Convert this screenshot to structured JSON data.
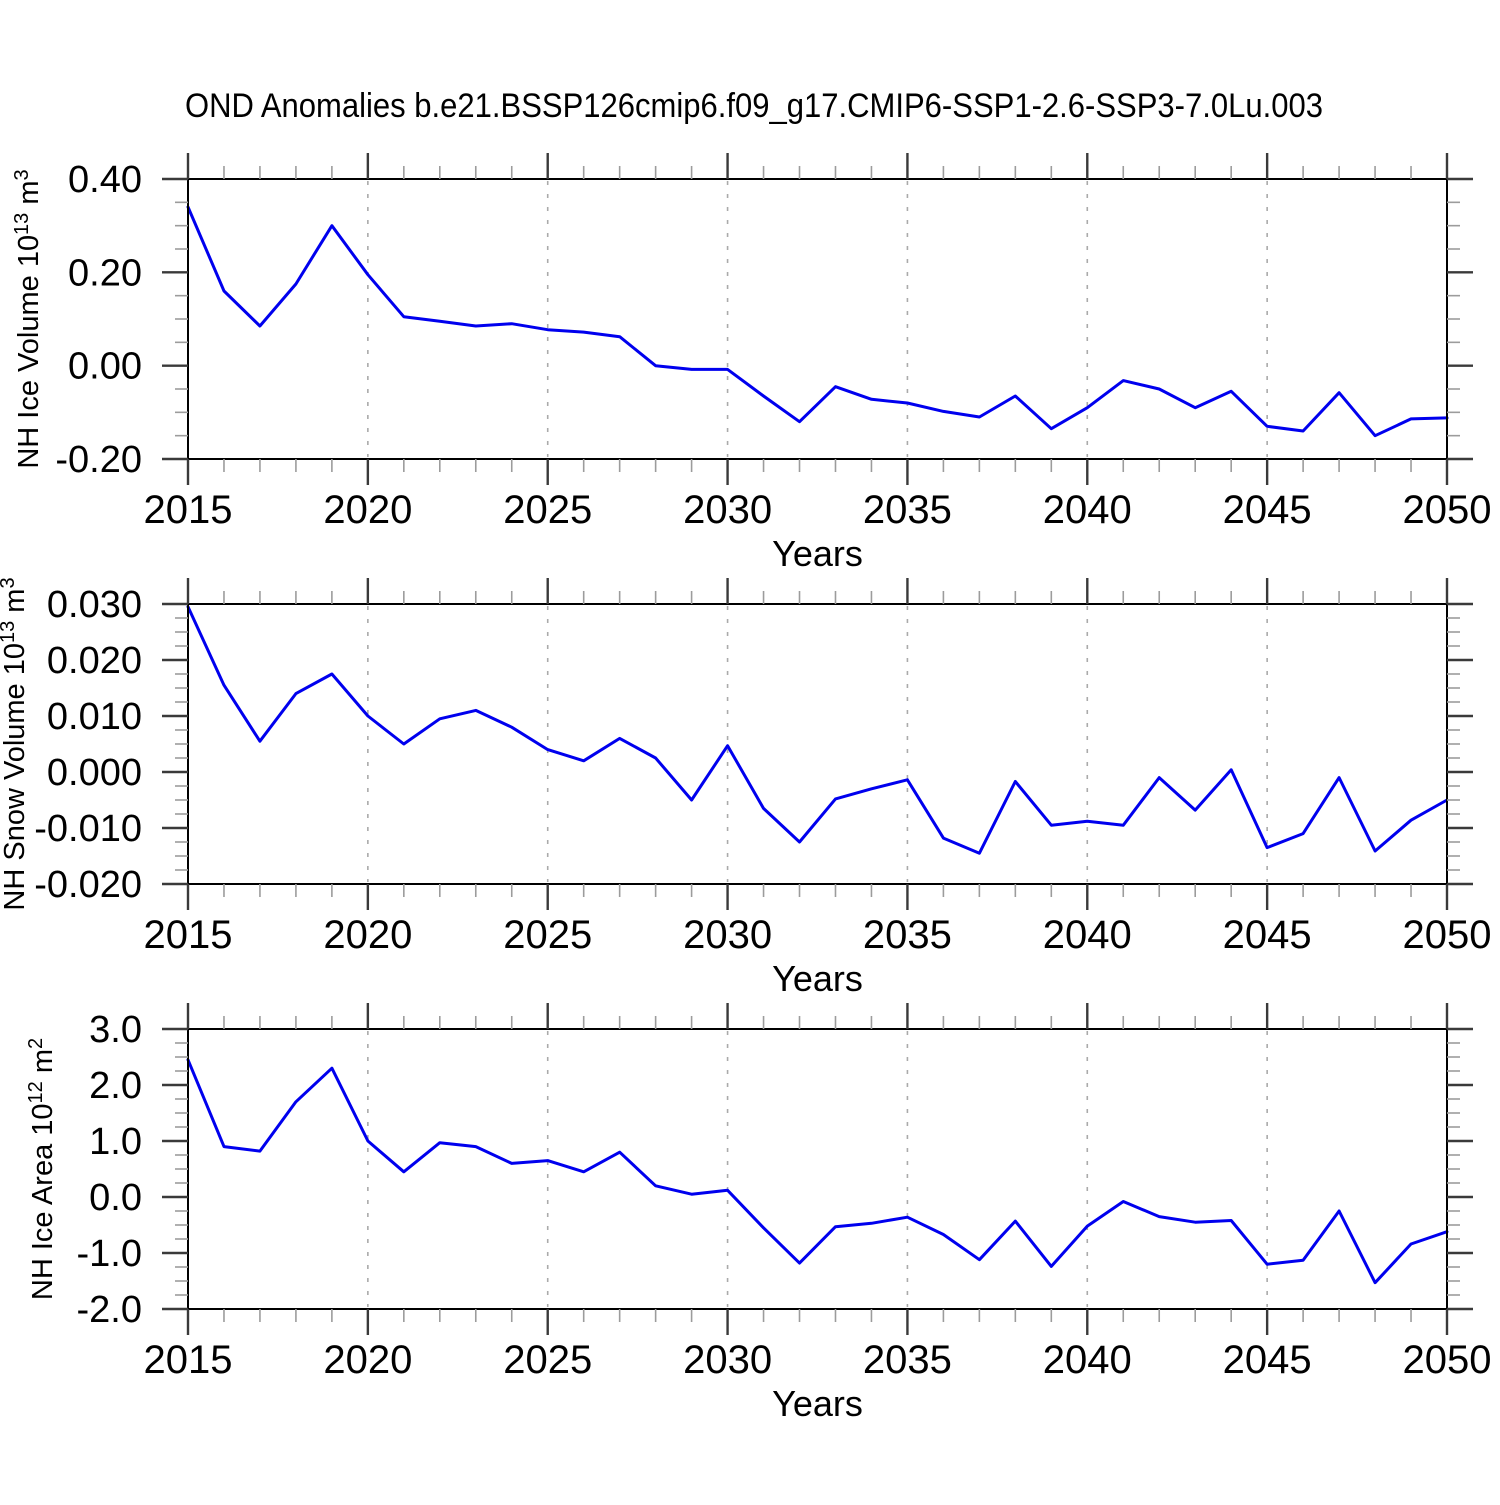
{
  "title": "OND Anomalies b.e21.BSSP126cmip6.f09_g17.CMIP6-SSP1-2.6-SSP3-7.0Lu.003",
  "colors": {
    "line": "#0000ee",
    "axis": "#000000",
    "major_tick": "#3a3a3a",
    "minor_tick": "#9c9c9c",
    "grid": "#aaaaaa",
    "text": "#000000"
  },
  "x_axis": {
    "label": "Years",
    "start": 2015,
    "end": 2050,
    "major_step": 5,
    "minor_step": 1,
    "tick_labels": [
      "2015",
      "2020",
      "2025",
      "2030",
      "2035",
      "2040",
      "2045",
      "2050"
    ],
    "grid_years": [
      2020,
      2025,
      2030,
      2035,
      2040,
      2045
    ],
    "years": [
      2015,
      2016,
      2017,
      2018,
      2019,
      2020,
      2021,
      2022,
      2023,
      2024,
      2025,
      2026,
      2027,
      2028,
      2029,
      2030,
      2031,
      2032,
      2033,
      2034,
      2035,
      2036,
      2037,
      2038,
      2039,
      2040,
      2041,
      2042,
      2043,
      2044,
      2045,
      2046,
      2047,
      2048,
      2049,
      2050
    ]
  },
  "chart_data": [
    {
      "id": "ice-volume",
      "type": "line",
      "ylabel": "NH Ice Volume 10^13 m^3",
      "ylabel_parts": [
        {
          "t": "NH Ice Volume 10",
          "sup": false
        },
        {
          "t": "13",
          "sup": true
        },
        {
          "t": " m",
          "sup": false
        },
        {
          "t": "3",
          "sup": true
        }
      ],
      "ylim": [
        -0.2,
        0.4
      ],
      "ymajor": 0.2,
      "yminor": 0.05,
      "ytick_labels": [
        "-0.20",
        "0.00",
        "0.20",
        "0.40"
      ],
      "xlabel": "Years",
      "values": [
        0.34,
        0.16,
        0.085,
        0.175,
        0.3,
        0.195,
        0.105,
        0.095,
        0.085,
        0.09,
        0.077,
        0.072,
        0.062,
        0.0,
        -0.008,
        -0.008,
        -0.065,
        -0.12,
        -0.045,
        -0.072,
        -0.08,
        -0.098,
        -0.11,
        -0.065,
        -0.135,
        -0.09,
        -0.032,
        -0.05,
        -0.09,
        -0.055,
        -0.13,
        -0.14,
        -0.058,
        -0.15,
        -0.114,
        -0.112
      ]
    },
    {
      "id": "snow-volume",
      "type": "line",
      "ylabel": "NH Snow Volume 10^13 m^3",
      "ylabel_parts": [
        {
          "t": "NH Snow Volume 10",
          "sup": false
        },
        {
          "t": "13",
          "sup": true
        },
        {
          "t": " m",
          "sup": false
        },
        {
          "t": "3",
          "sup": true
        }
      ],
      "ylim": [
        -0.02,
        0.03
      ],
      "ymajor": 0.01,
      "yminor": 0.0025,
      "ytick_labels": [
        "-0.020",
        "-0.010",
        "0.000",
        "0.010",
        "0.020",
        "0.030"
      ],
      "xlabel": "Years",
      "values": [
        0.0295,
        0.0155,
        0.0055,
        0.014,
        0.0175,
        0.01,
        0.005,
        0.0095,
        0.011,
        0.008,
        0.004,
        0.002,
        0.006,
        0.0025,
        -0.005,
        0.0047,
        -0.0065,
        -0.0125,
        -0.0048,
        -0.003,
        -0.0014,
        -0.0118,
        -0.0145,
        -0.0017,
        -0.0095,
        -0.0088,
        -0.0095,
        -0.001,
        -0.0068,
        0.0004,
        -0.0135,
        -0.011,
        -0.001,
        -0.0141,
        -0.0086,
        -0.005
      ]
    },
    {
      "id": "ice-area",
      "type": "line",
      "ylabel": "NH Ice Area 10^12 m^2",
      "ylabel_parts": [
        {
          "t": "NH Ice Area 10",
          "sup": false
        },
        {
          "t": "12",
          "sup": true
        },
        {
          "t": " m",
          "sup": false
        },
        {
          "t": "2",
          "sup": true
        }
      ],
      "ylim": [
        -2.0,
        3.0
      ],
      "ymajor": 1.0,
      "yminor": 0.25,
      "ytick_labels": [
        "-2.0",
        "-1.0",
        "0.0",
        "1.0",
        "2.0",
        "3.0"
      ],
      "xlabel": "Years",
      "values": [
        2.45,
        0.9,
        0.82,
        1.7,
        2.3,
        1.0,
        0.45,
        0.97,
        0.9,
        0.6,
        0.65,
        0.45,
        0.8,
        0.2,
        0.05,
        0.12,
        -0.55,
        -1.18,
        -0.53,
        -0.47,
        -0.36,
        -0.67,
        -1.12,
        -0.43,
        -1.24,
        -0.52,
        -0.08,
        -0.35,
        -0.45,
        -0.42,
        -1.2,
        -1.13,
        -0.25,
        -1.53,
        -0.84,
        -0.62
      ]
    }
  ]
}
